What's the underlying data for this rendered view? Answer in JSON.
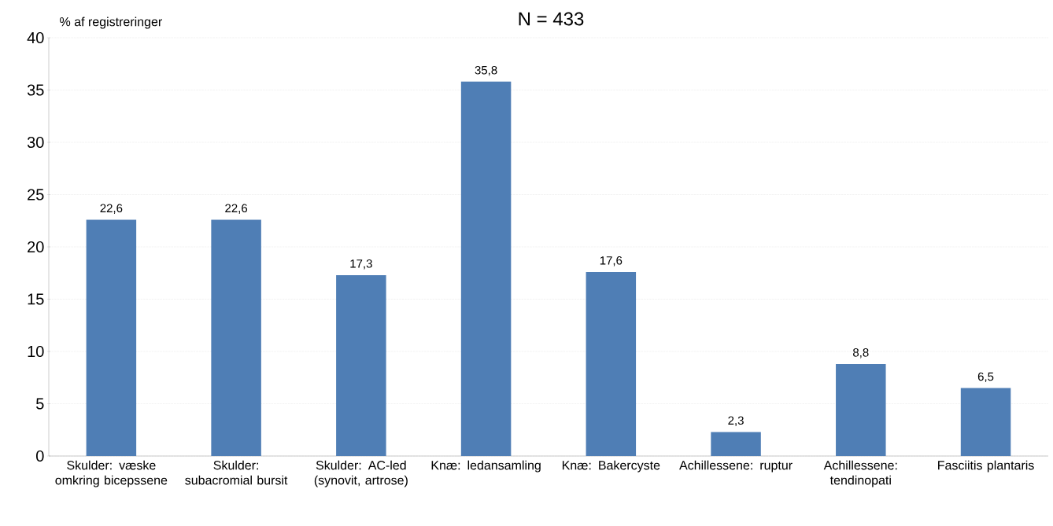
{
  "chart_data": {
    "type": "bar",
    "title": "N = 433",
    "ylabel": "% af  registreringer",
    "categories": [
      "Skulder: væske omkring bicepssene",
      "Skulder: subacromial bursit",
      "Skulder: AC-led (synovit, artrose)",
      "Knæ: ledansamling",
      "Knæ: Bakercyste",
      "Achillessene: ruptur",
      "Achillessene: tendinopati",
      "Fasciitis plantaris"
    ],
    "values": [
      22.6,
      22.6,
      17.3,
      35.8,
      17.6,
      2.3,
      8.8,
      6.5
    ],
    "value_labels": [
      "22,6",
      "22,6",
      "17,3",
      "35,8",
      "17,6",
      "2,3",
      "8,8",
      "6,5"
    ],
    "color": "#4f7eb5",
    "ylim": [
      0,
      40
    ],
    "yticks": [
      0,
      5,
      10,
      15,
      20,
      25,
      30,
      35,
      40
    ],
    "grid": "y"
  }
}
